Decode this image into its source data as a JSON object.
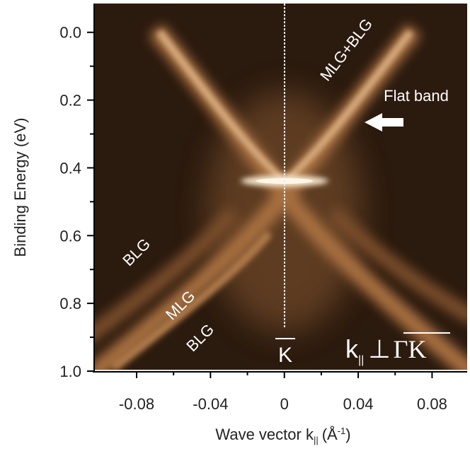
{
  "chart_data": {
    "type": "heatmap",
    "y_label": "Binding Energy (eV)",
    "x_label": {
      "text": "Wave vector k",
      "sub": "||",
      "unit": "(Å",
      "sup": "-1",
      "close": ")"
    },
    "xlim": [
      -0.103,
      0.099
    ],
    "ylim": [
      1.0,
      -0.085
    ],
    "xticks": [
      -0.08,
      -0.04,
      0,
      0.04,
      0.08
    ],
    "xminorticks": [
      -0.06,
      -0.02,
      0.02,
      0.06
    ],
    "yticks": [
      {
        "value": 0,
        "label": "0.0"
      },
      0.2,
      0.4,
      0.6,
      0.8,
      {
        "value": 1,
        "label": "1.0"
      }
    ],
    "yminorticks": [
      0.1,
      0.3,
      0.5,
      0.7,
      0.9
    ],
    "annotations": [
      "MLG+BLG",
      "Flat band",
      "BLG",
      "MLG",
      "BLG"
    ],
    "k_point": "K",
    "inset": {
      "k": "k",
      "sub": "||",
      "perp": "⊥",
      "path": "ΓK"
    }
  }
}
